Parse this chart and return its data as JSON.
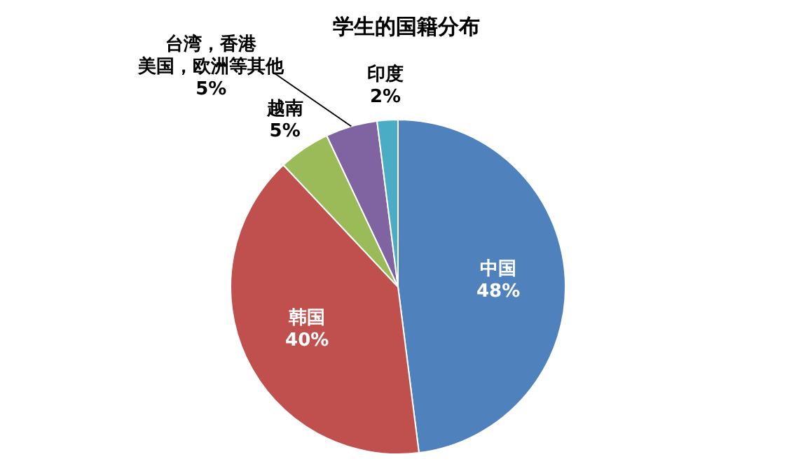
{
  "chart_data": {
    "type": "pie",
    "title": "学生的国籍分布",
    "categories": [
      "中国",
      "韩国",
      "越南",
      "台湾，香港美国，欧洲等其他",
      "印度"
    ],
    "values": [
      48,
      40,
      5,
      5,
      2
    ],
    "colors": [
      "#4f81bd",
      "#c0504d",
      "#9bbb59",
      "#8064a2",
      "#4bacc6"
    ],
    "value_labels": [
      "48%",
      "40%",
      "5%",
      "5%",
      "2%"
    ],
    "legend": false
  }
}
